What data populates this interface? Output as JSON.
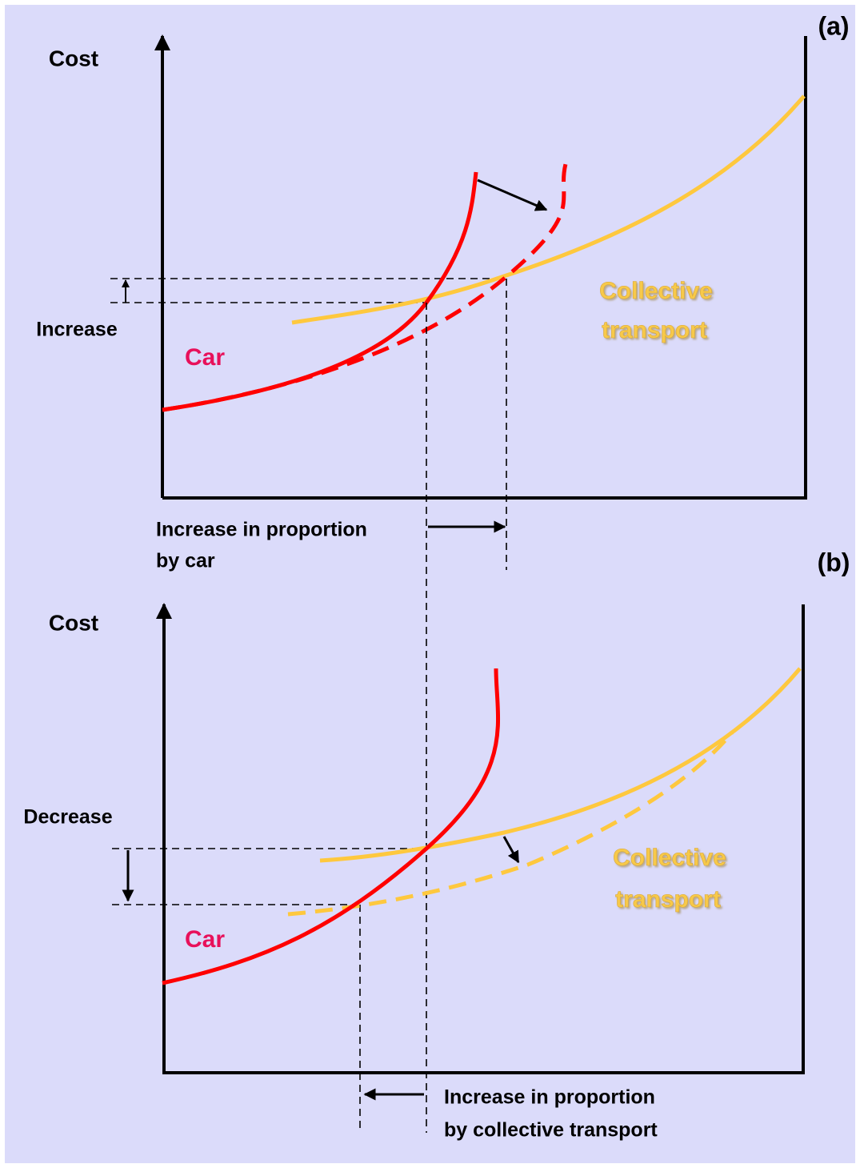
{
  "panels": [
    {
      "label": "(a)",
      "y_axis_label": "Cost",
      "change_label": "Increase",
      "car_label": "Car",
      "collective_label": [
        "Collective",
        "transport"
      ],
      "x_label": [
        "Increase in proportion",
        "by car"
      ]
    },
    {
      "label": "(b)",
      "y_axis_label": "Cost",
      "change_label": "Decrease",
      "car_label": "Car",
      "collective_label": [
        "Collective",
        "transport"
      ],
      "x_label": [
        "Increase in proportion",
        "by collective transport"
      ]
    }
  ]
}
